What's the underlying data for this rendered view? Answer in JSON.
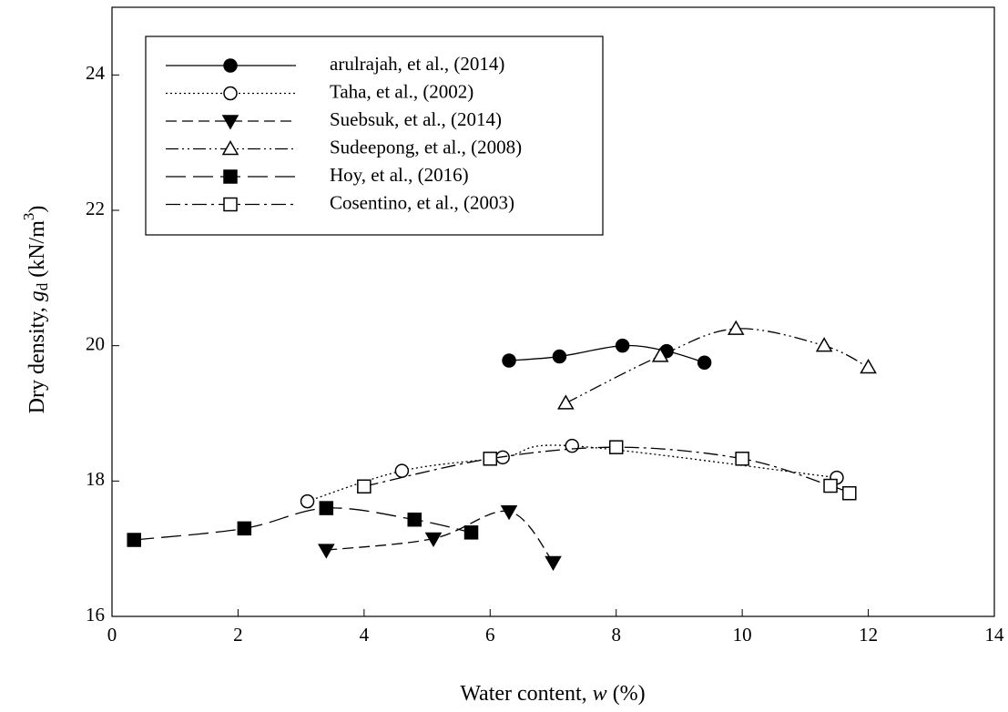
{
  "chart_data": {
    "type": "line",
    "xlabel_parts": [
      "Water content, ",
      "w",
      " (%)"
    ],
    "ylabel_parts": [
      "Dry density, ",
      "g",
      "d",
      " (kN/m",
      "3",
      ")"
    ],
    "xlim": [
      0,
      14
    ],
    "xticks": [
      0,
      2,
      4,
      6,
      8,
      10,
      12,
      14
    ],
    "ylim": [
      16,
      25
    ],
    "yticks": [
      16,
      18,
      20,
      22,
      24
    ],
    "legend": "upper left",
    "series": [
      {
        "name": "arulrajah, et al., (2014)",
        "color": "#000000",
        "dash": "solid",
        "marker": "circle",
        "filled": true,
        "x": [
          6.3,
          7.1,
          8.1,
          8.8,
          9.4
        ],
        "values": [
          19.78,
          19.84,
          20.0,
          19.92,
          19.75
        ]
      },
      {
        "name": "Taha, et al., (2002)",
        "color": "#000000",
        "dash": "dotted",
        "marker": "circle",
        "filled": false,
        "x": [
          3.1,
          4.6,
          6.2,
          7.3,
          11.5
        ],
        "values": [
          17.7,
          18.15,
          18.35,
          18.52,
          18.05
        ]
      },
      {
        "name": "Suebsuk, et al., (2014)",
        "color": "#000000",
        "dash": "dashed",
        "marker": "triangle-down",
        "filled": true,
        "x": [
          3.4,
          5.1,
          6.3,
          7.0
        ],
        "values": [
          16.98,
          17.15,
          17.55,
          16.8
        ]
      },
      {
        "name": "Sudeepong, et al., (2008)",
        "color": "#000000",
        "dash": "dash-dot-dot",
        "marker": "triangle-up",
        "filled": false,
        "x": [
          7.2,
          8.7,
          9.9,
          11.3,
          12.0
        ],
        "values": [
          19.15,
          19.85,
          20.25,
          20.0,
          19.68
        ]
      },
      {
        "name": "Hoy, et al., (2016)",
        "color": "#000000",
        "dash": "long-dash",
        "marker": "square",
        "filled": true,
        "x": [
          0.35,
          2.1,
          3.4,
          4.8,
          5.7
        ],
        "values": [
          17.13,
          17.3,
          17.6,
          17.43,
          17.24
        ]
      },
      {
        "name": "Cosentino, et al., (2003)",
        "color": "#000000",
        "dash": "dash-dot",
        "marker": "square",
        "filled": false,
        "x": [
          4.0,
          6.0,
          8.0,
          10.0,
          11.4,
          11.7
        ],
        "values": [
          17.92,
          18.33,
          18.5,
          18.33,
          17.93,
          17.82
        ]
      }
    ]
  }
}
